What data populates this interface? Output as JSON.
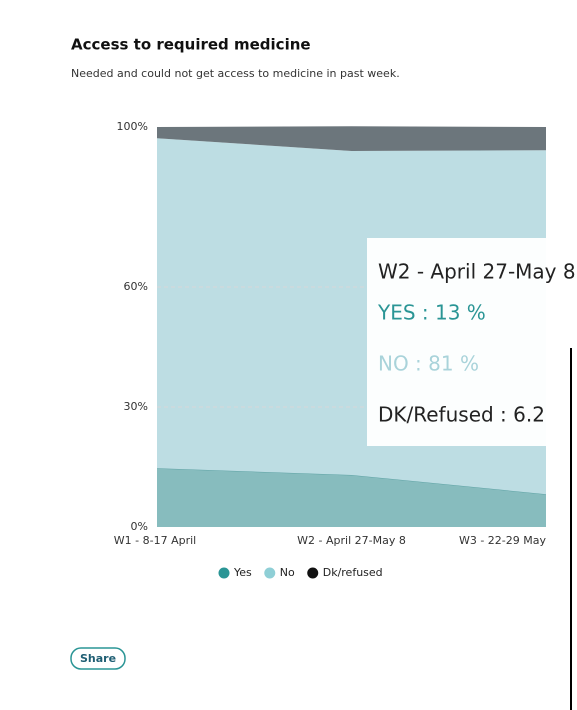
{
  "chart_data": {
    "type": "stacked-area",
    "title": "Access to required medicine",
    "subtitle": "Needed and could not get access to medicine in past week.",
    "categories": [
      "W1 - 8-17 April",
      "W2 - April 27-May 8",
      "W3 - 22-29 May"
    ],
    "series": [
      {
        "name": "Yes",
        "color": "#87bcbe",
        "legend_color": "#2a9595",
        "values": [
          14.7,
          13,
          8.2
        ]
      },
      {
        "name": "No",
        "color": "#bddde3",
        "legend_color": "#8fcfd6",
        "values": [
          82.5,
          81,
          86
        ]
      },
      {
        "name": "Dk/refused",
        "color": "#6c767c",
        "legend_color": "#111111",
        "values": [
          2.8,
          6.2,
          5.8
        ]
      }
    ],
    "ylim": [
      0,
      100
    ],
    "yticks": [
      {
        "value": 0,
        "label": "0%"
      },
      {
        "value": 30,
        "label": "30%"
      },
      {
        "value": 60,
        "label": "60%"
      },
      {
        "value": 100,
        "label": "100%"
      }
    ],
    "grid": true,
    "tooltip": {
      "category": 1,
      "lines": [
        "YES : 13 %",
        "NO : 81 %",
        "DK/Refused : 6.2"
      ]
    }
  },
  "share": "Share"
}
